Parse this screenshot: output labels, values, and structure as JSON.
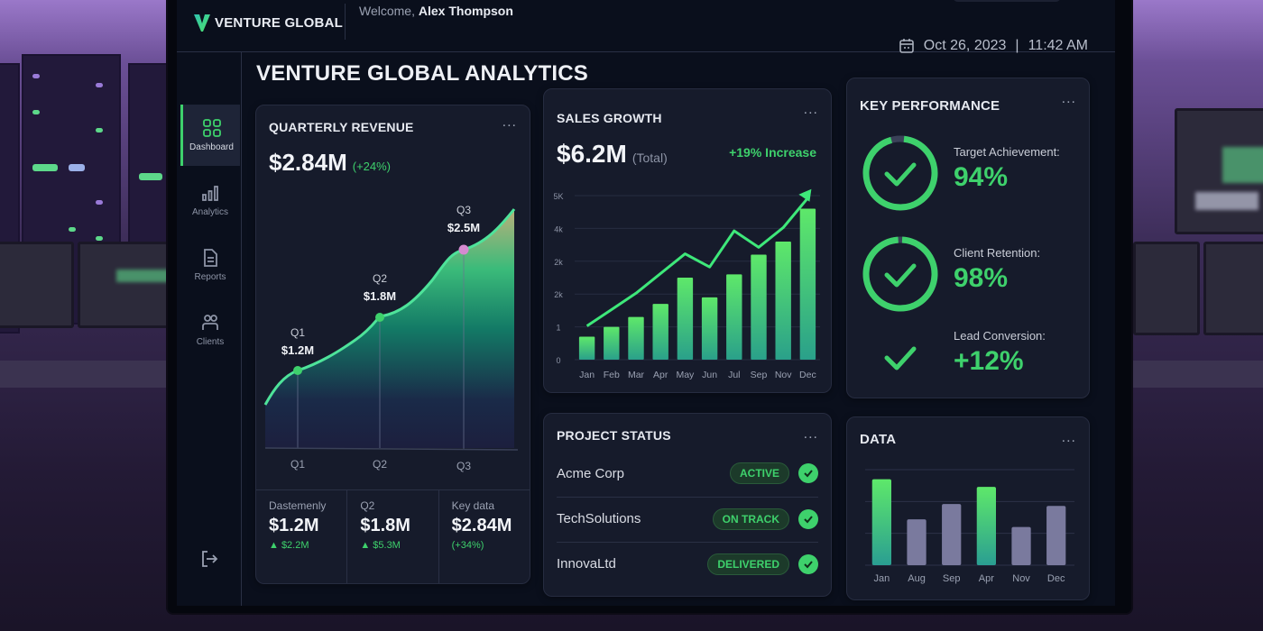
{
  "header": {
    "brand": "VENTURE GLOBAL",
    "welcome_prefix": "Welcome, ",
    "user_name": "Alex Thompson",
    "date": "Oct 26, 2023",
    "time": "11:42 AM",
    "separator": "|"
  },
  "sidebar": {
    "items": [
      {
        "label": "Dashboard",
        "icon": "grid-icon",
        "active": true
      },
      {
        "label": "Analytics",
        "icon": "bar-chart-icon",
        "active": false
      },
      {
        "label": "Reports",
        "icon": "document-icon",
        "active": false
      },
      {
        "label": "Clients",
        "icon": "users-icon",
        "active": false
      }
    ],
    "logout_icon": "logout-icon"
  },
  "page": {
    "title": "VENTURE GLOBAL ANALYTICS"
  },
  "quarterly_revenue": {
    "title": "QUARTERLY REVENUE",
    "more": "...",
    "value": "$2.84M",
    "change": "(+24%)",
    "points": [
      {
        "q": "Q1",
        "label": "$1.2M"
      },
      {
        "q": "Q2",
        "label": "$1.8M"
      },
      {
        "q": "Q3",
        "label": "$2.5M"
      }
    ],
    "axis": [
      "Q1",
      "Q2",
      "Q3"
    ],
    "footer": [
      {
        "label": "Dastemenly",
        "value": "$1.2M",
        "sub": "▲ $2.2M"
      },
      {
        "label": "Q2",
        "value": "$1.8M",
        "sub": "▲ $5.3M"
      },
      {
        "label": "Key data",
        "value": "$2.84M",
        "sub": "(+34%)"
      }
    ]
  },
  "sales_growth": {
    "title": "SALES GROWTH",
    "more": "...",
    "value": "$6.2M",
    "value_suffix": "(Total)",
    "increase": "+19% Increase"
  },
  "key_performance": {
    "title": "KEY PERFORMANCE",
    "more": "...",
    "items": [
      {
        "label": "Target Achievement:",
        "value": "94%"
      },
      {
        "label": "Client Retention:",
        "value": "98%"
      },
      {
        "label": "Lead Conversion:",
        "value": "+12%"
      }
    ]
  },
  "project_status": {
    "title": "PROJECT STATUS",
    "more": "...",
    "rows": [
      {
        "name": "Acme Corp",
        "status": "ACTIVE"
      },
      {
        "name": "TechSolutions",
        "status": "ON TRACK"
      },
      {
        "name": "InnovaLtd",
        "status": "DELIVERED"
      }
    ]
  },
  "data_card": {
    "title": "DATA",
    "more": "..."
  },
  "colors": {
    "accent_green": "#3ed16c",
    "screen_bg": "#0a0f1c",
    "card_bg": "#161b2b",
    "muted_bar": "#7a7a9e",
    "q3_marker": "#d58ad0"
  },
  "chart_data": [
    {
      "type": "area",
      "title": "QUARTERLY REVENUE",
      "categories": [
        "Q1",
        "Q2",
        "Q3"
      ],
      "values": [
        1.2,
        1.8,
        2.5
      ],
      "unit": "$M",
      "point_labels": [
        "$1.2M",
        "$1.8M",
        "$2.5M"
      ],
      "grid": false
    },
    {
      "type": "bar",
      "title": "SALES GROWTH",
      "categories": [
        "Jan",
        "Feb",
        "Mar",
        "Apr",
        "May",
        "Jun",
        "Jul",
        "Sep",
        "Nov",
        "Dec"
      ],
      "y_tick_labels": [
        "0",
        "1",
        "2k",
        "2k",
        "4k",
        "5K"
      ],
      "values": [
        0.7,
        1.0,
        1.3,
        1.7,
        2.5,
        1.9,
        2.6,
        3.2,
        3.6,
        4.6
      ],
      "trend_line": [
        1.3,
        1.8,
        2.3,
        2.9,
        3.5,
        3.1,
        4.2,
        3.7,
        4.3,
        5.2
      ],
      "ylim": [
        0,
        5
      ],
      "grid": true
    },
    {
      "type": "bar",
      "title": "DATA",
      "categories": [
        "Jan",
        "Aug",
        "Sep",
        "Apr",
        "Nov",
        "Dec"
      ],
      "values": [
        90,
        48,
        64,
        82,
        40,
        62
      ],
      "highlighted": [
        "Jan",
        "Apr"
      ],
      "ylim": [
        0,
        100
      ],
      "grid": true
    }
  ]
}
